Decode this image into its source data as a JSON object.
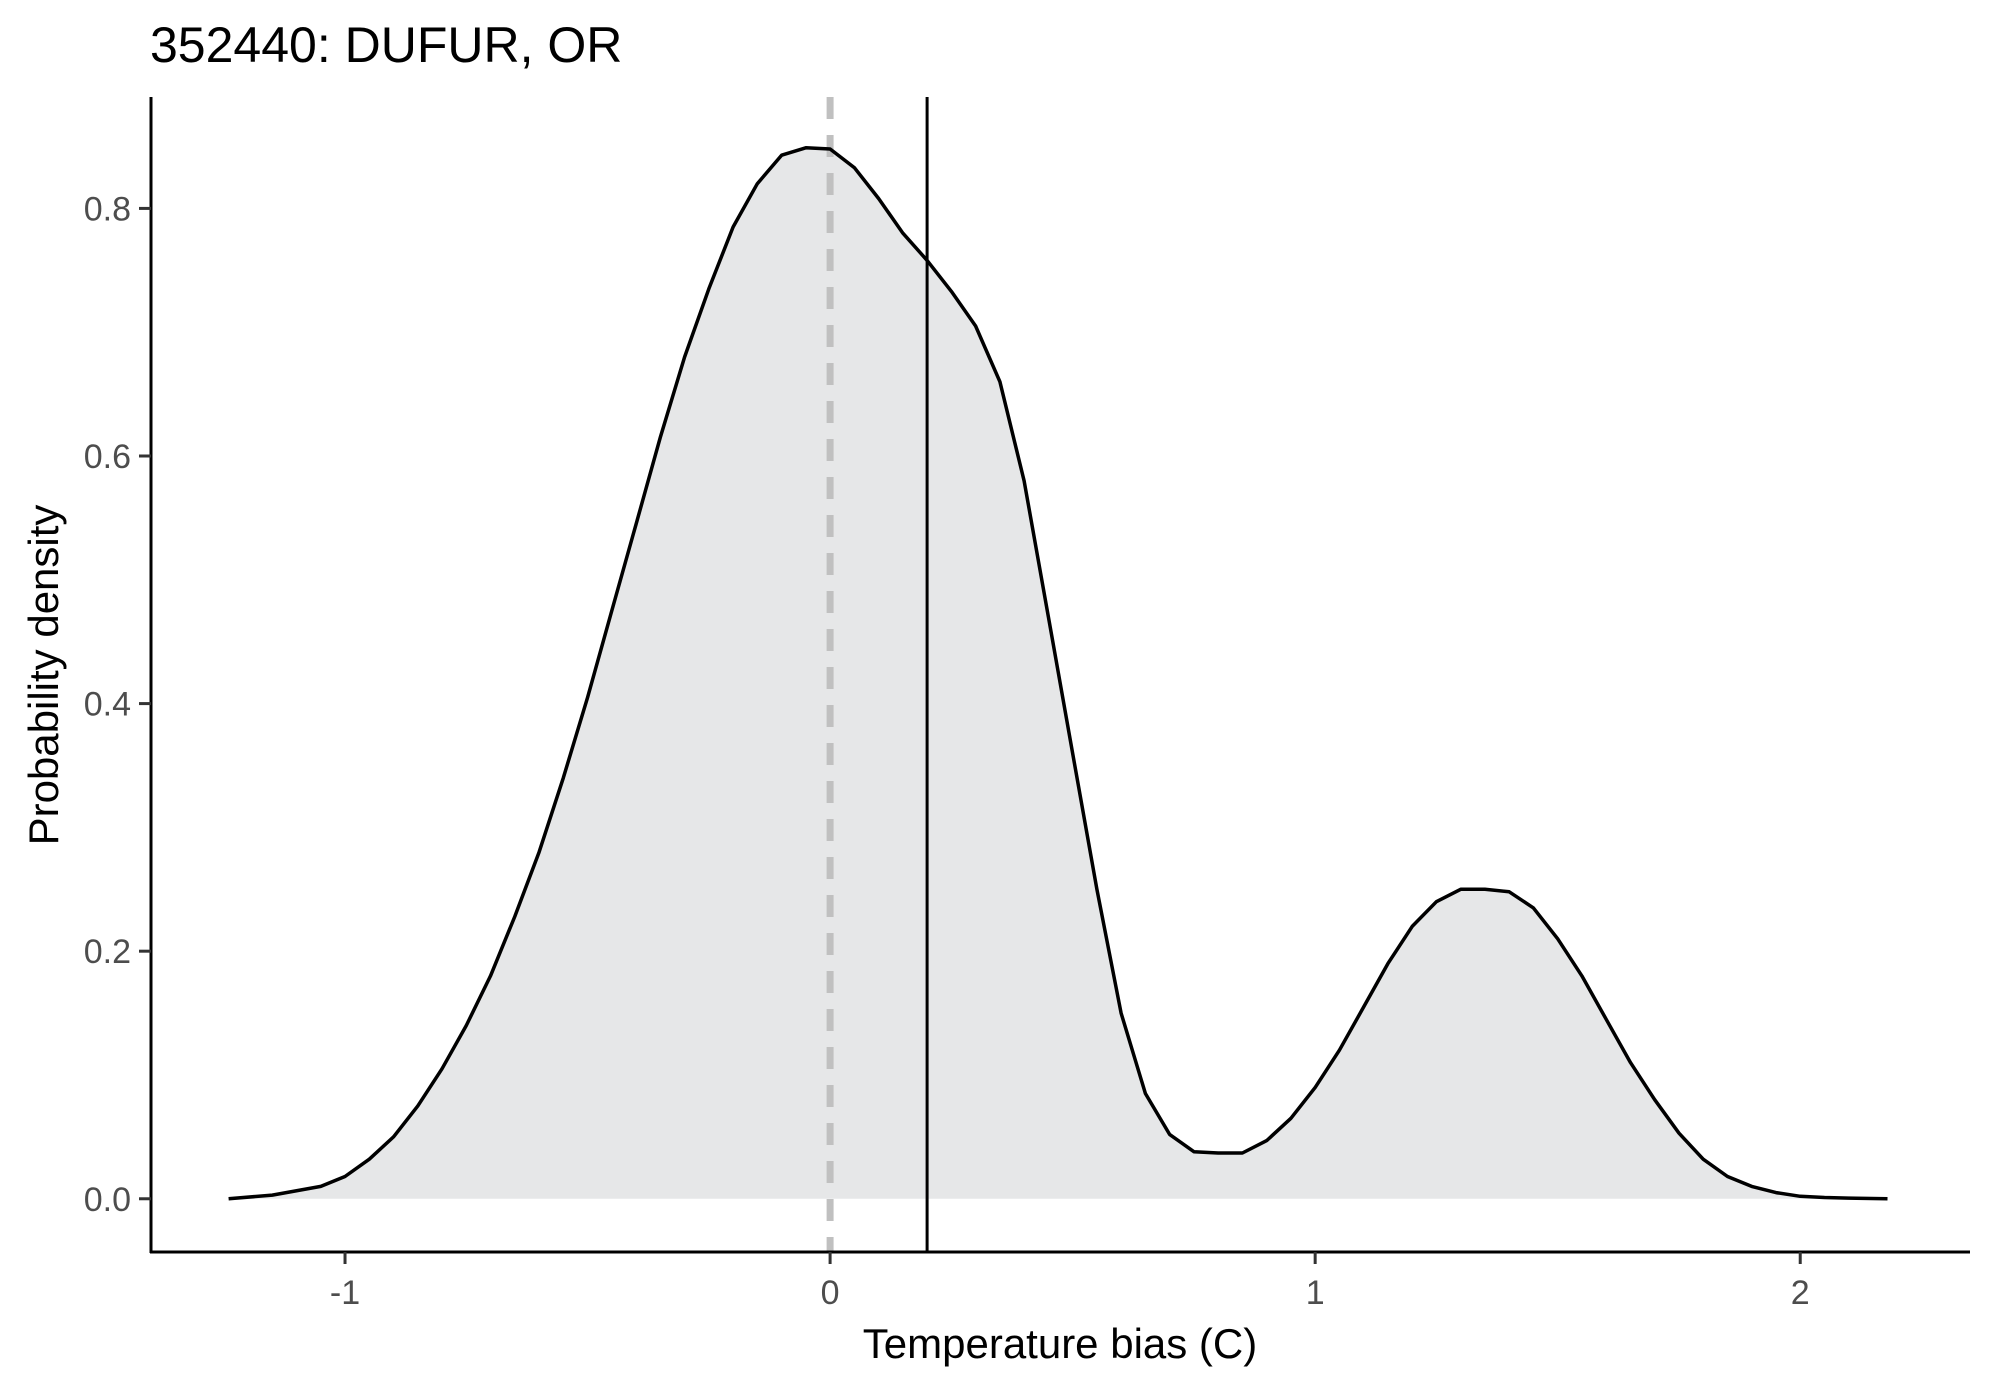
{
  "chart_data": {
    "type": "area",
    "title": "352440: DUFUR, OR",
    "xlabel": "Temperature bias (C)",
    "ylabel": "Probability density",
    "xlim": [
      -1.4,
      2.35
    ],
    "ylim": [
      -0.043,
      0.89
    ],
    "x_ticks": [
      -1,
      0,
      1,
      2
    ],
    "x_tick_labels": [
      "-1",
      "0",
      "1",
      "2"
    ],
    "y_ticks": [
      0.0,
      0.2,
      0.4,
      0.6,
      0.8
    ],
    "y_tick_labels": [
      "0.0",
      "0.2",
      "0.4",
      "0.6",
      "0.8"
    ],
    "grid": false,
    "legend": "none",
    "density_curve": {
      "x": [
        -1.24,
        -1.15,
        -1.05,
        -1.0,
        -0.95,
        -0.9,
        -0.85,
        -0.8,
        -0.75,
        -0.7,
        -0.65,
        -0.6,
        -0.55,
        -0.5,
        -0.45,
        -0.4,
        -0.35,
        -0.3,
        -0.25,
        -0.2,
        -0.15,
        -0.1,
        -0.05,
        0.0,
        0.05,
        0.1,
        0.15,
        0.2,
        0.25,
        0.3,
        0.35,
        0.4,
        0.45,
        0.5,
        0.55,
        0.6,
        0.65,
        0.7,
        0.75,
        0.8,
        0.85,
        0.9,
        0.95,
        1.0,
        1.05,
        1.1,
        1.15,
        1.2,
        1.25,
        1.3,
        1.35,
        1.4,
        1.45,
        1.5,
        1.55,
        1.6,
        1.65,
        1.7,
        1.75,
        1.8,
        1.85,
        1.9,
        1.95,
        2.0,
        2.05,
        2.1,
        2.18
      ],
      "y": [
        0.0,
        0.003,
        0.01,
        0.018,
        0.032,
        0.05,
        0.075,
        0.105,
        0.14,
        0.18,
        0.228,
        0.28,
        0.34,
        0.405,
        0.475,
        0.545,
        0.615,
        0.68,
        0.735,
        0.785,
        0.82,
        0.843,
        0.849,
        0.848,
        0.833,
        0.808,
        0.78,
        0.758,
        0.733,
        0.705,
        0.66,
        0.58,
        0.47,
        0.36,
        0.25,
        0.15,
        0.085,
        0.052,
        0.038,
        0.037,
        0.037,
        0.047,
        0.065,
        0.09,
        0.12,
        0.155,
        0.19,
        0.22,
        0.24,
        0.25,
        0.25,
        0.248,
        0.235,
        0.21,
        0.18,
        0.145,
        0.11,
        0.08,
        0.053,
        0.032,
        0.018,
        0.01,
        0.005,
        0.002,
        0.001,
        0.0005,
        0.0
      ],
      "fill": "#e6e7e8",
      "stroke": "#000000"
    },
    "reference_lines": [
      {
        "name": "zero-bias",
        "x": 0.0,
        "style": "dashed",
        "color": "#c0c0c0"
      },
      {
        "name": "observed-bias",
        "x": 0.2,
        "style": "solid",
        "color": "#000000"
      }
    ]
  }
}
